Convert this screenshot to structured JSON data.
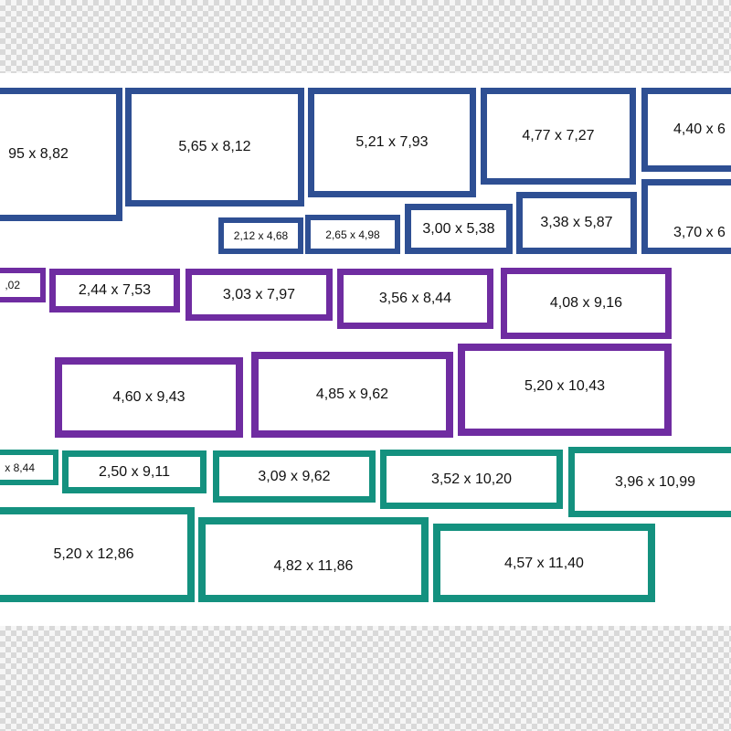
{
  "colors": {
    "blue": "#2e4f93",
    "purple": "#6f2ca1",
    "teal": "#14917f"
  },
  "groups": {
    "blue": [
      "95 x 8,82",
      "5,65 x 8,12",
      "5,21 x 7,93",
      "4,77 x 7,27",
      "4,40 x 6",
      "2,12 x 4,68",
      "2,65 x 4,98",
      "3,00 x 5,38",
      "3,38 x 5,87",
      "3,70 x 6"
    ],
    "purple": [
      ",02",
      "2,44 x 7,53",
      "3,03 x 7,97",
      "3,56 x 8,44",
      "4,08 x 9,16",
      "4,60 x 9,43",
      "4,85 x 9,62",
      "5,20 x 10,43"
    ],
    "teal": [
      "x 8,44",
      "2,50 x 9,11",
      "3,09 x 9,62",
      "3,52 x 10,20",
      "3,96 x 10,99",
      "5,20 x 12,86",
      "4,82 x 11,86",
      "4,57 x 11,40"
    ]
  }
}
